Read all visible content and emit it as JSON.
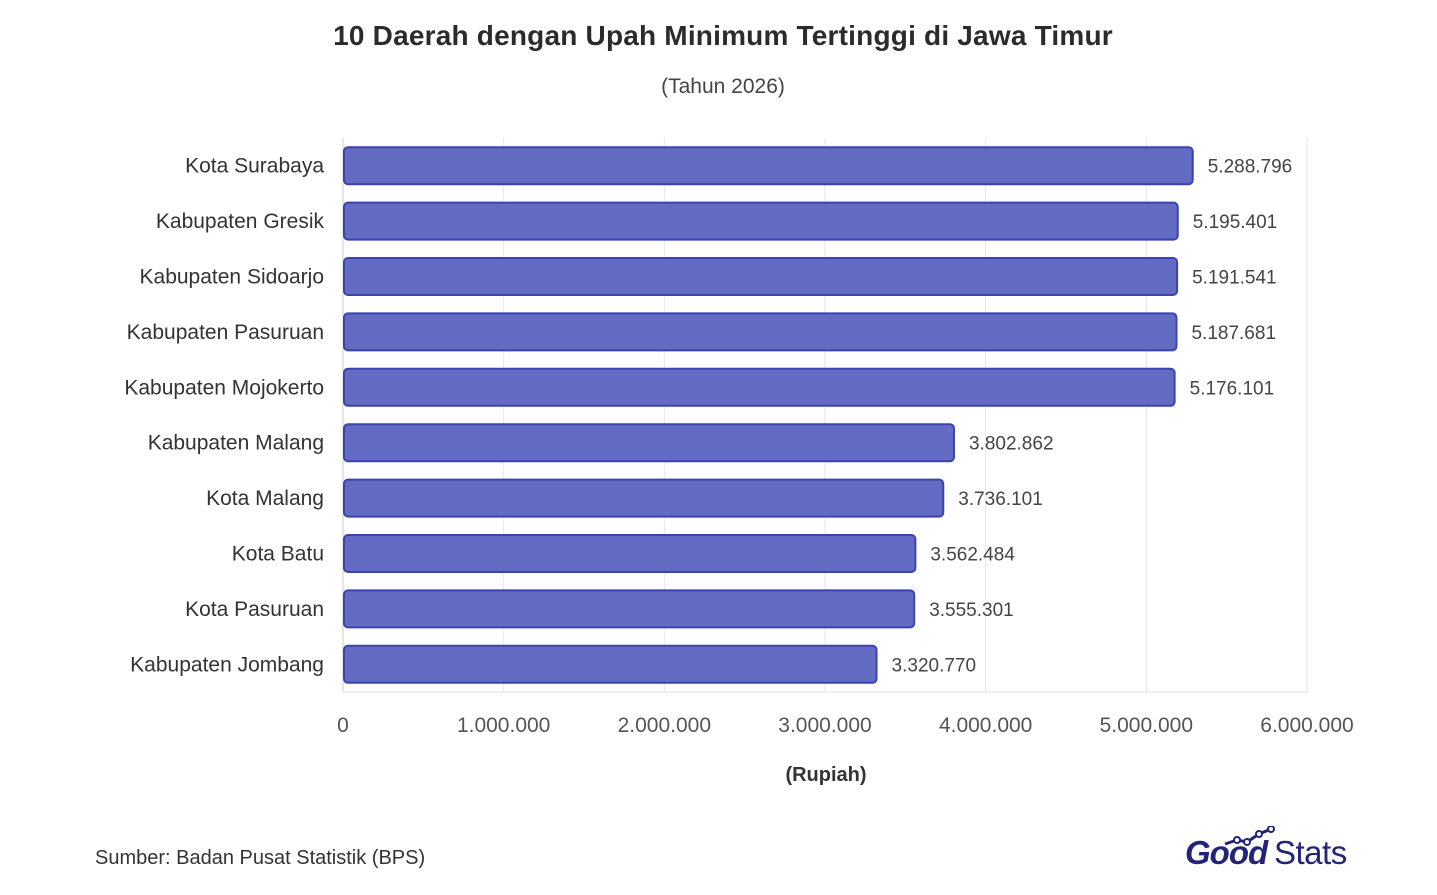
{
  "chart_data": {
    "type": "bar",
    "orientation": "horizontal",
    "title": "10 Daerah dengan Upah Minimum Tertinggi di Jawa Timur",
    "subtitle": "(Tahun 2026)",
    "xlabel": "(Rupiah)",
    "ylabel": "",
    "categories": [
      "Kota Surabaya",
      "Kabupaten Gresik",
      "Kabupaten Sidoarjo",
      "Kabupaten Pasuruan",
      "Kabupaten Mojokerto",
      "Kabupaten Malang",
      "Kota Malang",
      "Kota Batu",
      "Kota Pasuruan",
      "Kabupaten Jombang"
    ],
    "values": [
      5288796,
      5195401,
      5191541,
      5187681,
      5176101,
      3802862,
      3736101,
      3562484,
      3555301,
      3320770
    ],
    "value_labels": [
      "5.288.796",
      "5.195.401",
      "5.191.541",
      "5.187.681",
      "5.176.101",
      "3.802.862",
      "3.736.101",
      "3.562.484",
      "3.555.301",
      "3.320.770"
    ],
    "xlim": [
      0,
      6000000
    ],
    "ticks": [
      0,
      1000000,
      2000000,
      3000000,
      4000000,
      5000000,
      6000000
    ],
    "tick_labels": [
      "0",
      "1.000.000",
      "2.000.000",
      "3.000.000",
      "4.000.000",
      "5.000.000",
      "6.000.000"
    ],
    "grid": true,
    "bar_color": "#636bc2",
    "bar_border_color": "#3b43b0"
  },
  "footer": {
    "source": "Sumber: Badan Pusat Statistik (BPS)",
    "logo_good": "Good",
    "logo_stats": "Stats"
  }
}
